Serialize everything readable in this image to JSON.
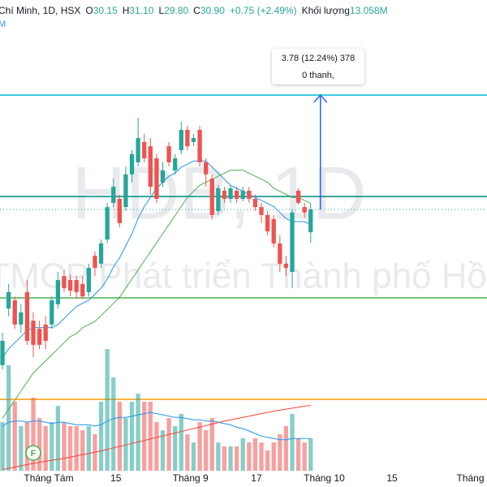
{
  "chart_data": {
    "type": "candlestick",
    "header": {
      "symbol": "Chí Minh, 1D, HSX",
      "items": [
        {
          "key": "O",
          "value": "30.15"
        },
        {
          "key": "H",
          "value": "31.10"
        },
        {
          "key": "L",
          "value": "29.80"
        },
        {
          "key": "C",
          "value": "30.90"
        },
        {
          "key": "",
          "value": "+0.75 (+2.49%)"
        },
        {
          "key": "Khối lượng",
          "value": "13.058M"
        }
      ],
      "sub": "M"
    },
    "watermark": {
      "symbol": "HDB, 1D",
      "name": "TMCP Phát triển Thành phố Hồ"
    },
    "xlim": [
      -0.4,
      78.6
    ],
    "xticks": [
      {
        "value": 7.5,
        "label": "Tháng Tám"
      },
      {
        "value": 18.4,
        "label": "15"
      },
      {
        "value": 30.5,
        "label": "Tháng 9"
      },
      {
        "value": 41.2,
        "label": "17"
      },
      {
        "value": 52.2,
        "label": "Tháng 10"
      },
      {
        "value": 63.2,
        "label": "15"
      },
      {
        "value": 75.9,
        "label": "Tháng"
      }
    ],
    "ylim": [
      22.27,
      37.82
    ],
    "vlim": [
      0,
      50
    ],
    "up_color": "#26a69a",
    "down_color": "#ef5350",
    "open": [
      25.76,
      27.63,
      27.9,
      27.1,
      28.17,
      27.23,
      26.96,
      27.1,
      27.1,
      27.77,
      28.7,
      28.57,
      28.57,
      28.44,
      28.17,
      29.37,
      29.11,
      29.91,
      31.12,
      31.25,
      30.98,
      32.06,
      32.46,
      33.13,
      32.99,
      32.59,
      31.79,
      32.99,
      32.19,
      32.86,
      33.53,
      33.13,
      33.53,
      32.46,
      31.92,
      30.85,
      31.52,
      31.25,
      31.52,
      31.25,
      31.52,
      31.25,
      30.98,
      30.72,
      30.58,
      29.78,
      29.11,
      28.84,
      31.52,
      30.98,
      30.15
    ],
    "high": [
      26.83,
      28.44,
      28.03,
      27.77,
      28.57,
      27.5,
      27.23,
      27.37,
      28.03,
      28.84,
      28.92,
      28.76,
      28.7,
      28.7,
      29.11,
      29.51,
      29.91,
      31.12,
      31.92,
      31.39,
      32.32,
      32.86,
      33.93,
      33.4,
      33.26,
      32.73,
      32.46,
      33.13,
      32.73,
      33.8,
      33.66,
      33.4,
      33.66,
      32.59,
      32.06,
      31.71,
      31.65,
      31.71,
      31.65,
      31.65,
      31.65,
      31.39,
      31.12,
      30.85,
      30.72,
      30.05,
      29.37,
      30.9,
      31.6,
      31.12,
      31.1
    ],
    "low": [
      25.62,
      27.37,
      26.96,
      26.83,
      26.43,
      26.02,
      26.29,
      26.29,
      26.96,
      27.63,
      28.17,
      28.03,
      27.95,
      27.95,
      28.03,
      28.7,
      28.97,
      29.78,
      30.98,
      30.31,
      30.85,
      31.79,
      32.32,
      32.46,
      31.39,
      31.12,
      31.65,
      32.32,
      32.06,
      32.73,
      32.86,
      32.99,
      32.32,
      31.65,
      30.58,
      30.72,
      31.12,
      31.12,
      31.12,
      31.17,
      31.12,
      30.85,
      30.45,
      30.05,
      29.64,
      28.84,
      28.7,
      28.3,
      31.06,
      30.63,
      29.8
    ],
    "close": [
      26.56,
      28.17,
      27.1,
      27.5,
      26.56,
      26.43,
      26.43,
      26.56,
      27.9,
      28.57,
      28.3,
      28.22,
      28.17,
      28.03,
      28.97,
      28.97,
      29.78,
      30.98,
      31.65,
      30.45,
      32.06,
      32.73,
      33.26,
      32.59,
      31.65,
      31.25,
      32.19,
      32.46,
      32.59,
      33.53,
      32.99,
      33.26,
      32.46,
      32.06,
      30.72,
      31.6,
      31.25,
      31.6,
      31.25,
      31.52,
      31.25,
      30.98,
      30.72,
      30.18,
      29.78,
      29.11,
      28.97,
      30.8,
      31.12,
      30.8,
      30.9
    ],
    "volume": [
      19.6,
      42.5,
      27.8,
      18.0,
      19.6,
      29.4,
      21.2,
      18.0,
      19.6,
      26.1,
      19.6,
      18.0,
      18.0,
      16.3,
      18.0,
      14.7,
      27.8,
      49.0,
      37.6,
      27.8,
      21.2,
      27.8,
      31.0,
      27.8,
      27.8,
      19.6,
      16.3,
      21.2,
      18.0,
      22.9,
      14.7,
      11.4,
      19.6,
      16.3,
      21.2,
      11.4,
      9.8,
      9.8,
      9.8,
      13.1,
      11.4,
      13.1,
      11.4,
      8.2,
      11.4,
      14.7,
      18.0,
      22.9,
      13.1,
      11.4,
      13.058
    ],
    "ma": [
      {
        "color": "#2196f3",
        "values": [
          26.0,
          26.3,
          26.5,
          26.7,
          26.9,
          27.0,
          27.0,
          27.0,
          27.0,
          27.1,
          27.3,
          27.5,
          27.7,
          27.8,
          27.9,
          28.1,
          28.3,
          28.6,
          29.0,
          29.3,
          29.7,
          30.1,
          30.6,
          31.0,
          31.3,
          31.6,
          31.8,
          32.0,
          32.1,
          32.3,
          32.4,
          32.5,
          32.5,
          32.5,
          32.3,
          32.1,
          31.9,
          31.7,
          31.6,
          31.5,
          31.4,
          31.3,
          31.2,
          31.1,
          31.0,
          30.8,
          30.6,
          30.5,
          30.5,
          30.5,
          30.4
        ]
      },
      {
        "color": "#4caf50",
        "values": [
          24.0,
          24.3,
          24.6,
          24.9,
          25.2,
          25.5,
          25.7,
          25.9,
          26.1,
          26.3,
          26.5,
          26.7,
          26.8,
          27.0,
          27.1,
          27.2,
          27.4,
          27.6,
          27.8,
          28.0,
          28.3,
          28.6,
          28.9,
          29.2,
          29.5,
          29.8,
          30.1,
          30.4,
          30.7,
          31.0,
          31.3,
          31.5,
          31.7,
          31.8,
          31.9,
          32.0,
          32.1,
          32.2,
          32.2,
          32.2,
          32.1,
          32.0,
          31.9,
          31.8,
          31.6,
          31.5,
          31.4,
          31.3,
          31.3,
          31.2,
          31.1
        ]
      }
    ],
    "volume_ma": [
      {
        "color": "#2196f3",
        "values": [
          18.0,
          19.5,
          20.0,
          20.0,
          19.5,
          20.0,
          20.0,
          19.5,
          19.0,
          19.5,
          19.5,
          19.0,
          18.5,
          18.5,
          18.5,
          18.0,
          18.5,
          20.0,
          21.0,
          21.5,
          21.5,
          22.0,
          22.5,
          23.0,
          23.5,
          23.0,
          22.5,
          22.0,
          21.5,
          21.5,
          21.0,
          20.5,
          20.5,
          20.0,
          20.0,
          19.5,
          19.0,
          18.5,
          17.5,
          17.0,
          16.0,
          15.0,
          14.0,
          13.5,
          13.0,
          12.5,
          12.5,
          13.0,
          13.0,
          13.0,
          13.0
        ]
      },
      {
        "color": "#f44336",
        "values": [
          0.5,
          1.0,
          1.5,
          2.0,
          2.5,
          3.0,
          3.4,
          3.8,
          4.2,
          4.6,
          5.0,
          5.5,
          6.0,
          6.5,
          7.0,
          7.5,
          8.0,
          8.6,
          9.2,
          9.8,
          10.4,
          11.0,
          11.6,
          12.2,
          12.8,
          13.4,
          14.0,
          14.6,
          15.2,
          15.8,
          16.4,
          17.0,
          17.6,
          18.2,
          18.8,
          19.4,
          20.0,
          20.5,
          21.0,
          21.5,
          22.0,
          22.5,
          23.0,
          23.5,
          24.0,
          24.4,
          24.8,
          25.2,
          25.6,
          26.0,
          26.3
        ]
      }
    ],
    "hlines": [
      {
        "value": 34.68,
        "color": "#00bcd4"
      },
      {
        "value": 31.33,
        "color": "#00897b"
      },
      {
        "value": 27.98,
        "color": "#4caf50"
      },
      {
        "value": 24.63,
        "color": "#ff9800"
      }
    ],
    "measure": {
      "from": 30.9,
      "to": 34.68,
      "index": 50,
      "color": "#2962ff",
      "lines": [
        "3.78 (12.24%) 378",
        "0 thanh,"
      ]
    },
    "events": [
      {
        "index": 5,
        "label": "F"
      }
    ]
  }
}
